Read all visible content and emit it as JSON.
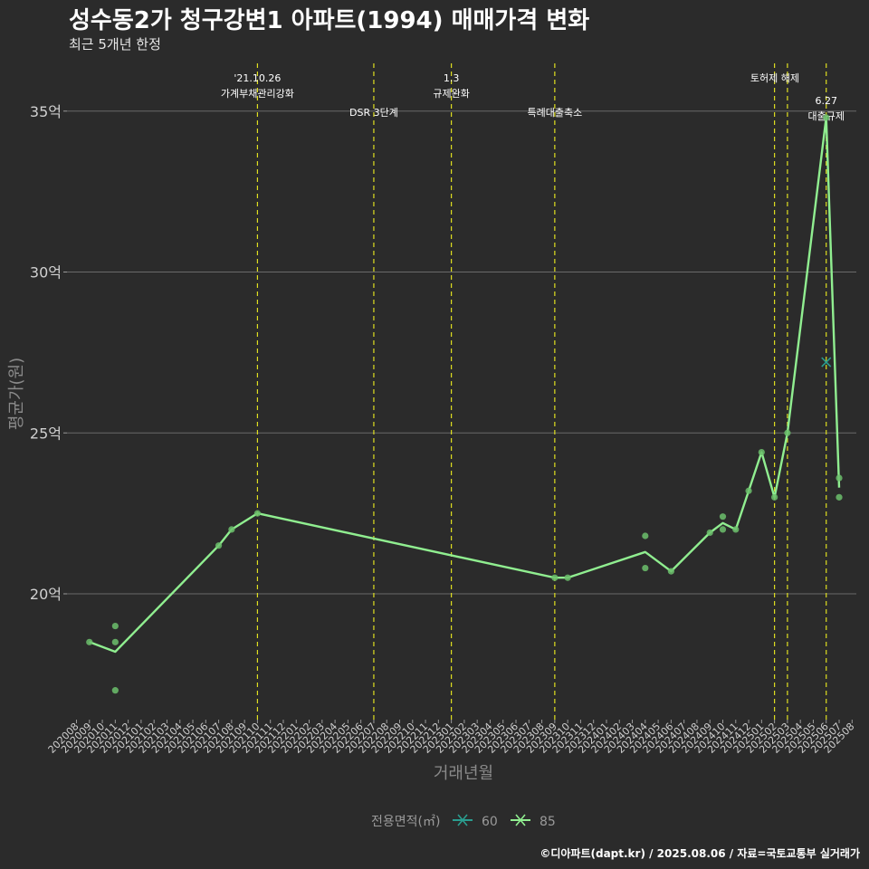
{
  "title": "성수동2가 청구강변1 아파트(1994) 매매가격 변화",
  "subtitle": "최근 5개년 한정",
  "caption": "©디아파트(dapt.kr) / 2025.08.06 / 자료=국토교통부 실거래가",
  "chart_data": {
    "type": "line",
    "xlabel": "거래년월",
    "ylabel": "평균가(원)",
    "y_unit_suffix": "억",
    "ylim": [
      16.1,
      36.6
    ],
    "yticks": [
      20,
      25,
      30,
      35
    ],
    "x_categories": [
      "202008",
      "202009",
      "202010",
      "202011",
      "202012",
      "202101",
      "202102",
      "202103",
      "202104",
      "202105",
      "202106",
      "202107",
      "202108",
      "202109",
      "202110",
      "202111",
      "202112",
      "202201",
      "202202",
      "202203",
      "202204",
      "202205",
      "202206",
      "202207",
      "202208",
      "202209",
      "202210",
      "202211",
      "202212",
      "202301",
      "202302",
      "202303",
      "202304",
      "202305",
      "202306",
      "202307",
      "202308",
      "202309",
      "202310",
      "202311",
      "202312",
      "202401",
      "202402",
      "202403",
      "202404",
      "202405",
      "202406",
      "202407",
      "202408",
      "202409",
      "202410",
      "202411",
      "202412",
      "202501",
      "202502",
      "202503",
      "202504",
      "202505",
      "202506",
      "202507",
      "202508"
    ],
    "grid": true,
    "legend": {
      "title": "전용면적(㎡)",
      "position": "bottom",
      "items": [
        {
          "label": "60",
          "color": "#2a9d8f"
        },
        {
          "label": "85",
          "color": "#90ee90"
        }
      ]
    },
    "series": [
      {
        "name": "60",
        "color": "#2a9d8f",
        "line": [
          [
            "202506",
            27.2
          ]
        ],
        "points": [
          [
            "202506",
            27.2
          ]
        ]
      },
      {
        "name": "85",
        "color": "#90ee90",
        "line": [
          [
            "202009",
            18.5
          ],
          [
            "202011",
            18.2
          ],
          [
            "202107",
            21.5
          ],
          [
            "202108",
            22.0
          ],
          [
            "202110",
            22.5
          ],
          [
            "202309",
            20.5
          ],
          [
            "202310",
            20.5
          ],
          [
            "202404",
            21.3
          ],
          [
            "202406",
            20.7
          ],
          [
            "202409",
            21.9
          ],
          [
            "202410",
            22.2
          ],
          [
            "202411",
            22.0
          ],
          [
            "202412",
            23.2
          ],
          [
            "202501",
            24.4
          ],
          [
            "202502",
            23.0
          ],
          [
            "202503",
            25.0
          ],
          [
            "202506",
            34.8
          ],
          [
            "202507",
            23.3
          ]
        ],
        "points": [
          [
            "202009",
            18.5
          ],
          [
            "202011",
            19.0
          ],
          [
            "202011",
            18.5
          ],
          [
            "202011",
            17.0
          ],
          [
            "202107",
            21.5
          ],
          [
            "202108",
            22.0
          ],
          [
            "202110",
            22.5
          ],
          [
            "202309",
            20.5
          ],
          [
            "202310",
            20.5
          ],
          [
            "202404",
            21.8
          ],
          [
            "202404",
            20.8
          ],
          [
            "202406",
            20.7
          ],
          [
            "202409",
            21.9
          ],
          [
            "202410",
            22.4
          ],
          [
            "202410",
            22.0
          ],
          [
            "202411",
            22.0
          ],
          [
            "202412",
            23.2
          ],
          [
            "202501",
            24.4
          ],
          [
            "202502",
            23.0
          ],
          [
            "202503",
            25.0
          ],
          [
            "202506",
            34.8
          ],
          [
            "202507",
            23.6
          ],
          [
            "202507",
            23.0
          ]
        ]
      }
    ],
    "annotations": [
      {
        "x": "202110",
        "lines": [
          "'21.10.26",
          "가계부채관리강화"
        ],
        "row": 0
      },
      {
        "x": "202207",
        "lines": [
          "DSR 3단계"
        ],
        "row": 1
      },
      {
        "x": "202301",
        "lines": [
          "1.3",
          "규제완화"
        ],
        "row": 0
      },
      {
        "x": "202309",
        "lines": [
          "특례대출축소"
        ],
        "row": 1
      },
      {
        "x": "202502",
        "lines": [],
        "row": 0
      },
      {
        "x": "202503",
        "lines": [
          "토허제 해제"
        ],
        "row": 0
      },
      {
        "x": "202506",
        "lines": [
          "6.27",
          "대출규제"
        ],
        "row": 2
      }
    ]
  }
}
